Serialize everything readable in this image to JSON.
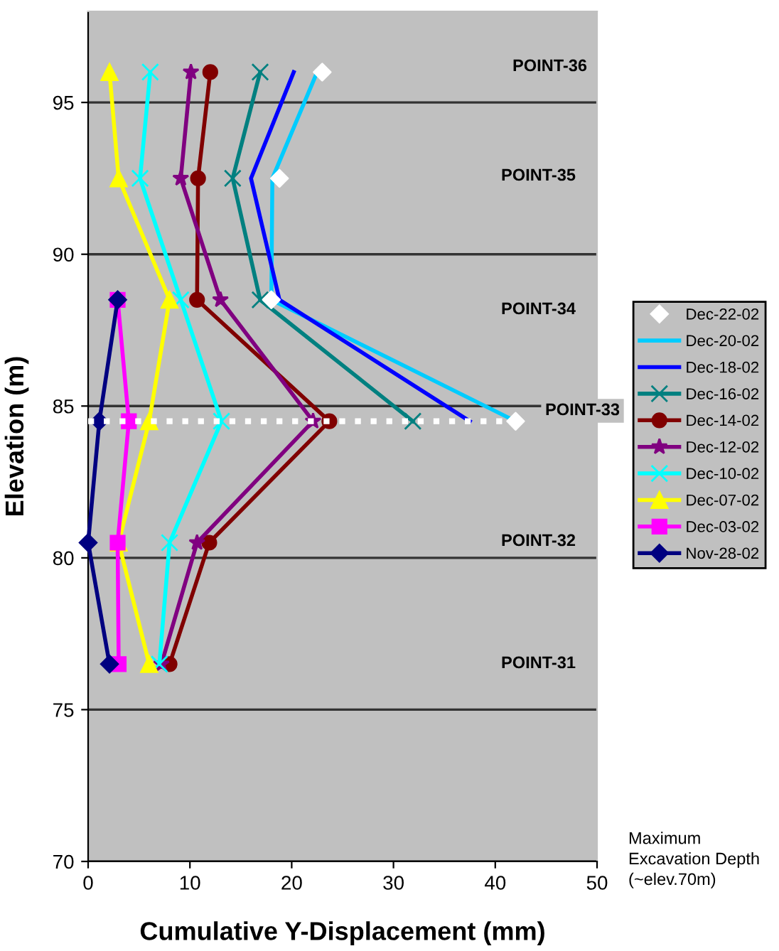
{
  "chart_data": {
    "type": "line",
    "xlabel": "Cumulative Y-Displacement (mm)",
    "ylabel": "Elevation (m)",
    "xlim": [
      0,
      50
    ],
    "xticks": [
      0,
      10,
      20,
      30,
      40,
      50
    ],
    "ylim": [
      70,
      98
    ],
    "yticks": [
      70,
      75,
      80,
      85,
      90,
      95
    ],
    "grid": "y",
    "legend": "right",
    "line_style": "solid",
    "ref_lines": [
      {
        "axis": "y",
        "value": 84.5,
        "color": "#ffffff",
        "line_style": "dotted"
      }
    ],
    "series": [
      {
        "name": "Dec-22-02",
        "type": "scatter",
        "color": "#ffffff",
        "marker": "diamond",
        "x": [
          23,
          18.8,
          18.0,
          42
        ],
        "values": [
          96,
          92.5,
          88.5,
          84.5
        ]
      },
      {
        "name": "Dec-20-02",
        "color": "#00ccff",
        "marker": "none",
        "x": [
          22.5,
          18.1,
          18.0,
          42
        ],
        "values": [
          96,
          92.5,
          88.5,
          84.5
        ]
      },
      {
        "name": "Dec-18-02",
        "color": "#0000ff",
        "marker": "none",
        "x": [
          20.2,
          16.0,
          18.8,
          37.5
        ],
        "values": [
          96,
          92.5,
          88.5,
          84.5
        ]
      },
      {
        "name": "Dec-16-02",
        "color": "#008080",
        "marker": "cross",
        "x": [
          16.9,
          14.2,
          16.9,
          31.9
        ],
        "values": [
          96,
          92.5,
          88.5,
          84.5
        ]
      },
      {
        "name": "Dec-14-02",
        "color": "#800000",
        "marker": "circle",
        "x": [
          12.0,
          10.8,
          10.7,
          23.7,
          11.9,
          8.0
        ],
        "values": [
          96,
          92.5,
          88.5,
          84.5,
          80.5,
          76.5
        ]
      },
      {
        "name": "Dec-12-02",
        "color": "#800080",
        "marker": "star",
        "x": [
          10.1,
          9.1,
          13.0,
          22.1,
          10.7,
          7.2
        ],
        "values": [
          96,
          92.5,
          88.5,
          84.5,
          80.5,
          76.5
        ]
      },
      {
        "name": "Dec-10-02",
        "color": "#00ffff",
        "marker": "cross",
        "x": [
          6.1,
          5.1,
          9.1,
          13.1,
          8.0,
          7.0
        ],
        "values": [
          96,
          92.5,
          88.5,
          84.5,
          80.5,
          76.5
        ]
      },
      {
        "name": "Dec-07-02",
        "color": "#ffff00",
        "marker": "triangle",
        "x": [
          2.1,
          3.0,
          8.0,
          6.0,
          3.0,
          6.0
        ],
        "values": [
          96,
          92.5,
          88.5,
          84.5,
          80.5,
          76.5
        ]
      },
      {
        "name": "Dec-03-02",
        "color": "#ff00ff",
        "marker": "square",
        "x": [
          2.9,
          4.0,
          2.9,
          3.0
        ],
        "values": [
          88.5,
          84.5,
          80.5,
          76.5
        ]
      },
      {
        "name": "Nov-28-02",
        "color": "#000080",
        "marker": "diamond",
        "x": [
          2.9,
          1.1,
          0,
          2.1
        ],
        "values": [
          88.5,
          84.5,
          80.5,
          76.5
        ]
      }
    ],
    "annotations": [
      "POINT-36",
      "POINT-35",
      "POINT-34",
      "POINT-33",
      "POINT-32",
      "POINT-31",
      "Maximum\nExcavation Depth\n(~elev.70m)"
    ]
  }
}
